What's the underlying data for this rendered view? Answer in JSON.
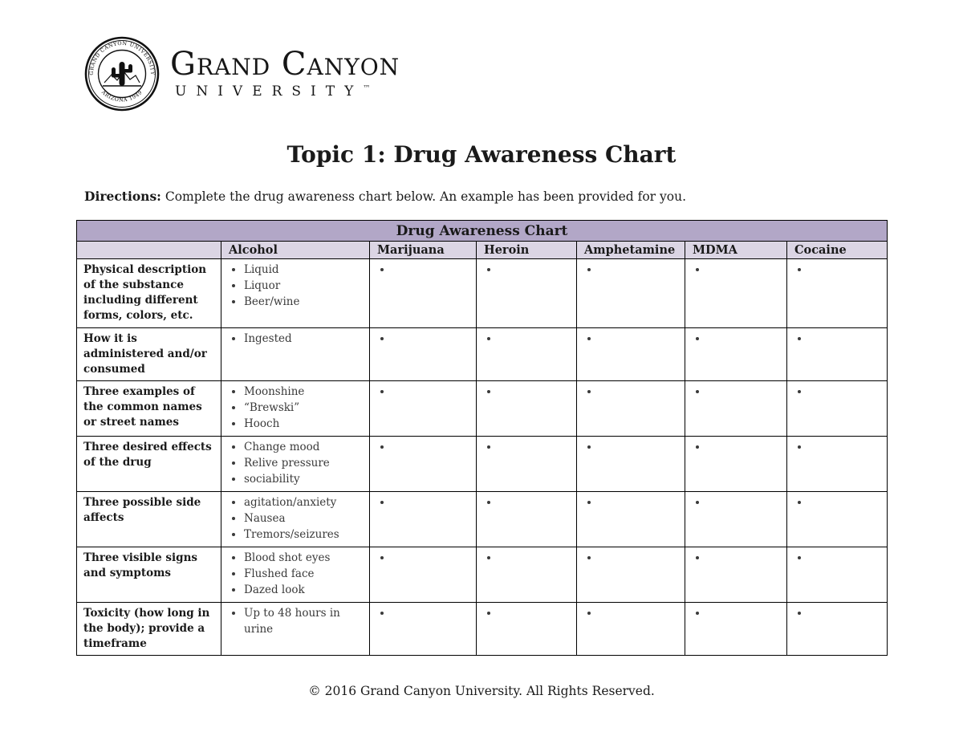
{
  "theme": {
    "page-bg": "#ffffff",
    "caption-bg": "#b2a7c7",
    "subheader-bg": "#dbd5e4",
    "border-color": "#000000",
    "text-color": "#1a1a1a",
    "bullet-text-color": "#3a3a3a"
  },
  "logo": {
    "wordmark_line1": "Grand Canyon",
    "wordmark_line2": "UNIVERSITY",
    "trademark": "™",
    "seal_top_text": "GRAND CANYON UNIVERSITY",
    "seal_bottom_text": "ARIZONA 1949"
  },
  "page": {
    "title": "Topic 1: Drug Awareness Chart",
    "directions_label": "Directions:",
    "directions_text": "Complete the drug awareness chart below. An example has been provided for you.",
    "footer": "© 2016 Grand Canyon University. All Rights Reserved."
  },
  "table": {
    "caption": "Drug Awareness Chart",
    "columns": [
      "",
      "Alcohol",
      "Marijuana",
      "Heroin",
      "Amphetamine",
      "MDMA",
      "Cocaine"
    ],
    "drug_keys": [
      "alcohol",
      "marijuana",
      "heroin",
      "amphetamine",
      "mdma",
      "cocaine"
    ],
    "rows": [
      {
        "label": "Physical description of the substance including different forms, colors, etc.",
        "cells": [
          [
            "Liquid",
            "Liquor",
            "Beer/wine"
          ],
          [
            ""
          ],
          [
            ""
          ],
          [
            ""
          ],
          [
            ""
          ],
          [
            ""
          ]
        ]
      },
      {
        "label": "How it is administered and/or consumed",
        "cells": [
          [
            "Ingested"
          ],
          [
            ""
          ],
          [
            ""
          ],
          [
            ""
          ],
          [
            ""
          ],
          [
            ""
          ]
        ]
      },
      {
        "label": "Three examples of the common names or street names",
        "cells": [
          [
            "Moonshine",
            "“Brewski”",
            "Hooch"
          ],
          [
            ""
          ],
          [
            ""
          ],
          [
            ""
          ],
          [
            ""
          ],
          [
            ""
          ]
        ]
      },
      {
        "label": "Three desired effects of the drug",
        "cells": [
          [
            "Change mood",
            "Relive pressure",
            "sociability"
          ],
          [
            ""
          ],
          [
            ""
          ],
          [
            ""
          ],
          [
            ""
          ],
          [
            ""
          ]
        ]
      },
      {
        "label": "Three possible side affects",
        "cells": [
          [
            "agitation/anxiety",
            "Nausea",
            "Tremors/seizures"
          ],
          [
            ""
          ],
          [
            ""
          ],
          [
            ""
          ],
          [
            ""
          ],
          [
            ""
          ]
        ]
      },
      {
        "label": "Three visible signs and symptoms",
        "cells": [
          [
            "Blood shot eyes",
            "Flushed face",
            "Dazed look"
          ],
          [
            ""
          ],
          [
            ""
          ],
          [
            ""
          ],
          [
            ""
          ],
          [
            ""
          ]
        ]
      },
      {
        "label": "Toxicity (how long in the body); provide a timeframe",
        "cells": [
          [
            "Up to 48 hours in urine"
          ],
          [
            ""
          ],
          [
            ""
          ],
          [
            ""
          ],
          [
            ""
          ],
          [
            ""
          ]
        ]
      }
    ]
  }
}
